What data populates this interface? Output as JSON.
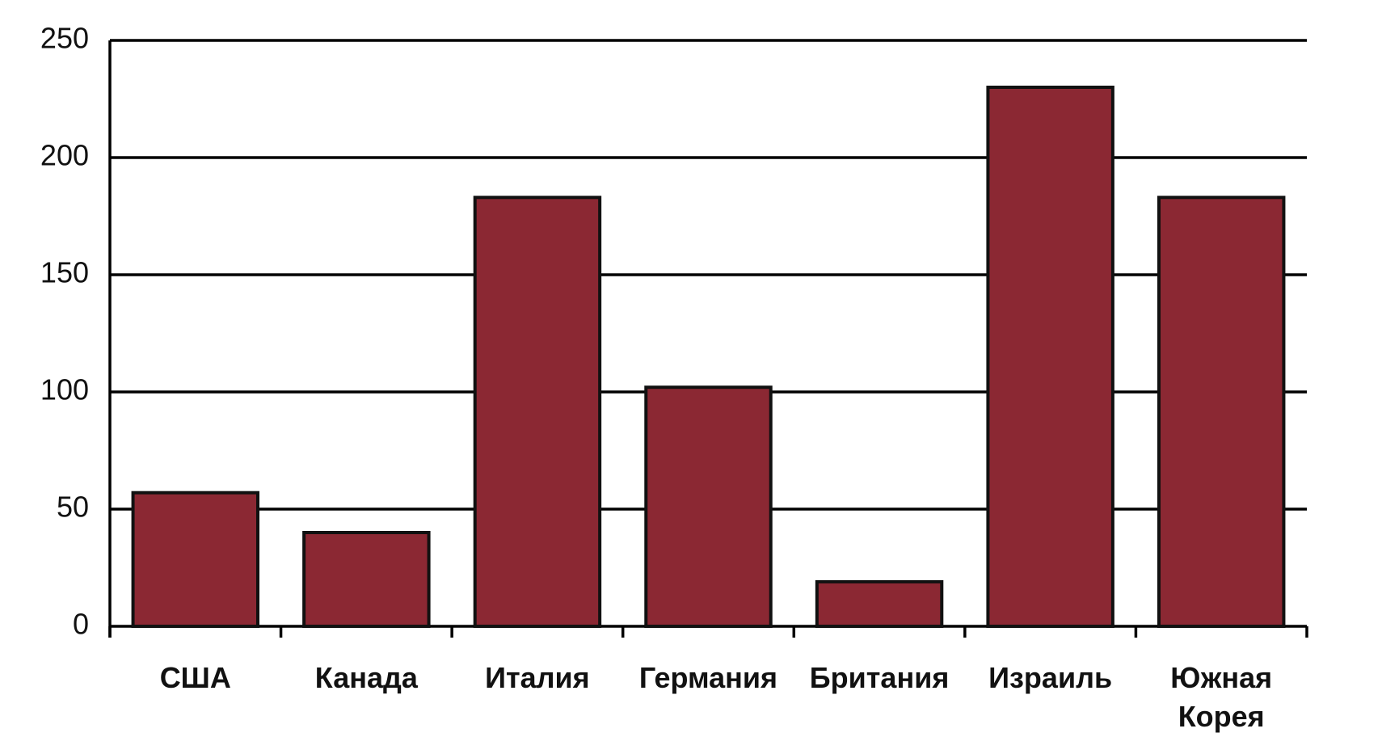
{
  "chart_data": {
    "type": "bar",
    "categories": [
      "США",
      "Канада",
      "Италия",
      "Германия",
      "Британия",
      "Израиль",
      "Южная Корея"
    ],
    "values": [
      57,
      40,
      183,
      102,
      19,
      230,
      183
    ],
    "color": "#8b2833",
    "ylim": [
      0,
      250
    ],
    "yticks": [
      0,
      50,
      100,
      150,
      200,
      250
    ],
    "grid": true
  }
}
